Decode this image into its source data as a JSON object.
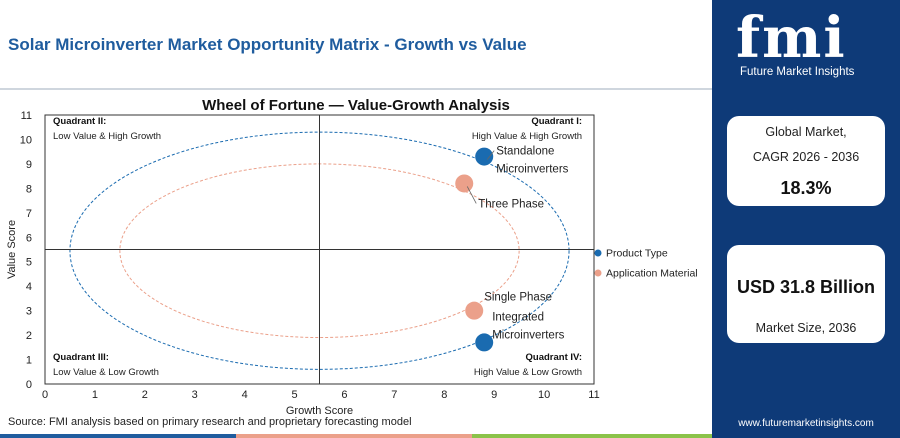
{
  "header": {
    "title": "Solar Microinverter Market Opportunity Matrix - Growth vs Value"
  },
  "chart_data": {
    "type": "scatter",
    "title": "Wheel of Fortune — Value-Growth Analysis",
    "xlabel": "Growth Score",
    "ylabel": "Value Score",
    "xlim": [
      0,
      11
    ],
    "ylim": [
      0,
      11
    ],
    "x_ticks": [
      "0",
      "1",
      "2",
      "3",
      "4",
      "5",
      "6",
      "7",
      "8",
      "9",
      "10",
      "11"
    ],
    "y_ticks": [
      "0",
      "1",
      "2",
      "3",
      "4",
      "5",
      "6",
      "7",
      "8",
      "9",
      "10",
      "11"
    ],
    "divider_x": 5.5,
    "divider_y": 5.5,
    "series": [
      {
        "name": "Product Type",
        "color": "#1a6bb0",
        "points": [
          {
            "x": 8.8,
            "y": 9.3,
            "label": [
              "Standalone",
              "Microinverters"
            ]
          },
          {
            "x": 8.8,
            "y": 1.7,
            "label": [
              "Integrated",
              "Microinverters"
            ]
          }
        ]
      },
      {
        "name": "Application Material",
        "color": "#eba08a",
        "points": [
          {
            "x": 8.4,
            "y": 8.2,
            "label": [
              "Three Phase"
            ]
          },
          {
            "x": 8.6,
            "y": 3.0,
            "label": [
              "Single Phase"
            ]
          }
        ]
      }
    ],
    "quadrants": [
      {
        "title": "Quadrant II:",
        "subtitle": "Low Value & High Growth"
      },
      {
        "title": "Quadrant I:",
        "subtitle": "High Value & High Growth"
      },
      {
        "title": "Quadrant III:",
        "subtitle": "Low Value & Low Growth"
      },
      {
        "title": "Quadrant IV:",
        "subtitle": "High Value & Low Growth"
      }
    ],
    "legend_position": "right",
    "grid": false
  },
  "sidebar": {
    "logo_text": "fmi",
    "logo_tagline": "Future Market Insights",
    "cagr_label_line1": "Global Market,",
    "cagr_label_line2": "CAGR 2026 - 2036",
    "cagr_value": "18.3%",
    "size_value": "USD 31.8 Billion",
    "size_label": "Market Size, 2036",
    "website": "www.futuremarketinsights.com"
  },
  "footer": {
    "source": "Source: FMI analysis based on primary research and proprietary forecasting model"
  },
  "colors": {
    "brand_blue": "#0e3a78",
    "title_blue": "#1f5c9e",
    "bar_segments": [
      "#1f5c9e",
      "#eba08a",
      "#8bc34a",
      "#0e3a78"
    ]
  }
}
